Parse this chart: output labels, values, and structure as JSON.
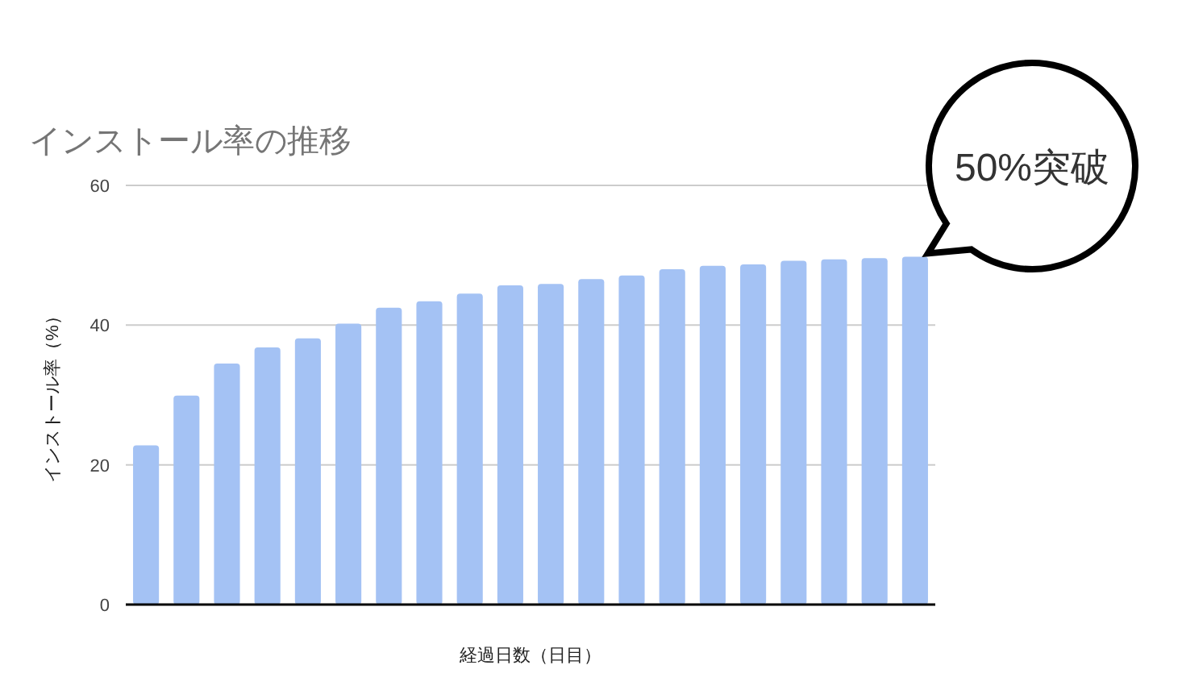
{
  "chart_data": {
    "type": "bar",
    "title": "インストール率の推移",
    "xlabel": "経過日数（日目）",
    "ylabel": "インストール率（%）",
    "categories": [
      null,
      null,
      null,
      null,
      null,
      null,
      null,
      null,
      null,
      null,
      null,
      null,
      null,
      null,
      null,
      null,
      null,
      null,
      null,
      null
    ],
    "values": [
      22.8,
      29.9,
      34.5,
      36.8,
      38.1,
      40.2,
      42.5,
      43.4,
      44.5,
      45.7,
      45.9,
      46.6,
      47.1,
      48.0,
      48.5,
      48.7,
      49.2,
      49.4,
      49.6,
      49.8
    ],
    "color": "#a4c2f4",
    "ylim": [
      0,
      60
    ],
    "yticks": [
      0,
      20,
      40,
      60
    ],
    "grid": "y",
    "annotations": [
      "50%突破"
    ]
  }
}
